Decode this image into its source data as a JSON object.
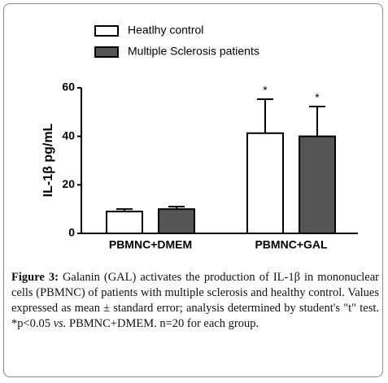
{
  "chart_data": {
    "type": "bar",
    "ylabel": "IL-1β pg/mL",
    "categories": [
      "PBMNC+DMEM",
      "PBMNC+GAL"
    ],
    "series": [
      {
        "name": "Heatlhy control",
        "color": "#ffffff",
        "values": [
          9,
          41.3
        ],
        "errors": [
          1,
          14
        ],
        "annotations": [
          null,
          "*"
        ]
      },
      {
        "name": "Multiple Sclerosis patients",
        "color": "#555555",
        "values": [
          10,
          40
        ],
        "errors": [
          1,
          12.3
        ],
        "annotations": [
          null,
          "*"
        ]
      }
    ],
    "ylim": [
      0,
      60
    ],
    "yticks": [
      0,
      20,
      40,
      60
    ]
  },
  "caption": {
    "label": "Figure 3:",
    "text_before": "Galanin (GAL) activates the production of IL-1β in mononuclear cells (PBMNC) of patients with multiple sclerosis and healthy control. Values expressed as mean ± standard error; analysis determined by student's \"t\" test. *p<0.05",
    "emphasis": "vs.",
    "text_after": "PBMNC+DMEM. n=20 for each group."
  }
}
